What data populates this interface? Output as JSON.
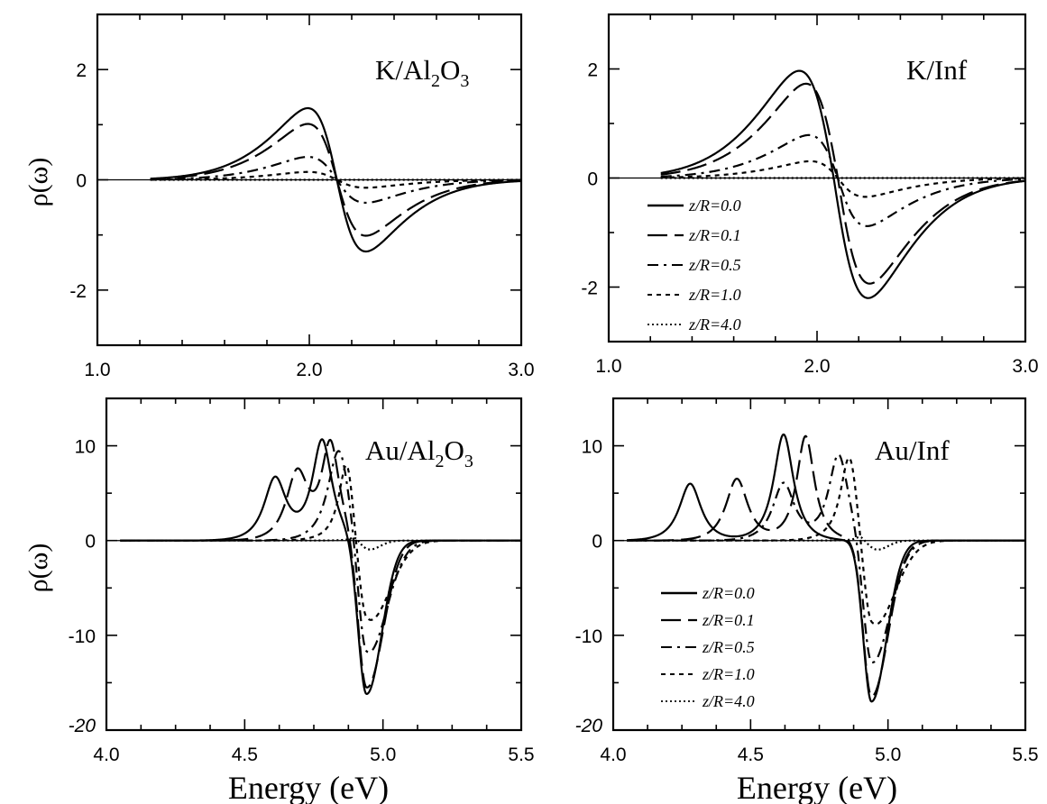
{
  "chart_data": [
    {
      "type": "line",
      "title": "K/Al2O3",
      "title_parts": [
        "K/Al",
        "2",
        "O",
        "3"
      ],
      "xlabel": "",
      "ylabel": "ρ(ω)",
      "xlim": [
        1.0,
        3.0
      ],
      "ylim": [
        -3,
        3
      ],
      "xticks": [
        "1.0",
        "2.0",
        "3.0"
      ],
      "yticks": [
        "2",
        "0",
        "-2"
      ],
      "grid": false,
      "model": {
        "center": 2.13,
        "width": 0.16,
        "amp": 1.42,
        "sigma": 0.13
      },
      "series": [
        {
          "z_over_R": 0.0,
          "scale": 1.0,
          "peak": [
            2.0,
            1.42
          ],
          "trough": [
            2.26,
            -1.42
          ]
        },
        {
          "z_over_R": 0.1,
          "scale": 0.78,
          "peak": [
            2.01,
            1.1
          ],
          "trough": [
            2.26,
            -1.1
          ]
        },
        {
          "z_over_R": 0.5,
          "scale": 0.32,
          "peak": [
            2.03,
            0.45
          ],
          "trough": [
            2.24,
            -0.45
          ]
        },
        {
          "z_over_R": 1.0,
          "scale": 0.11,
          "peak": [
            2.05,
            0.15
          ],
          "trough": [
            2.23,
            -0.15
          ]
        },
        {
          "z_over_R": 4.0,
          "scale": 0.0,
          "peak": [
            2.13,
            0.0
          ],
          "trough": [
            2.13,
            0.0
          ]
        }
      ]
    },
    {
      "type": "line",
      "title": "K/Inf",
      "title_parts": [
        "K/Inf"
      ],
      "xlabel": "",
      "ylabel": "",
      "xlim": [
        1.0,
        3.0
      ],
      "ylim": [
        -3,
        3
      ],
      "xticks": [
        "1.0",
        "2.0",
        "3.0"
      ],
      "yticks": [
        "2",
        "0",
        "-2"
      ],
      "grid": false,
      "legend": {
        "placement": "lower-left",
        "entries": [
          "z/R=0.0",
          "z/R=0.1",
          "z/R=0.5",
          "z/R=1.0",
          "z/R=4.0"
        ]
      },
      "series": [
        {
          "z_over_R": 0.0,
          "center": 2.08,
          "width": 0.2,
          "amp": 2.2,
          "sigma": 0.18,
          "peak": [
            1.92,
            2.2
          ],
          "trough": [
            2.25,
            -2.45
          ]
        },
        {
          "z_over_R": 0.1,
          "center": 2.1,
          "width": 0.18,
          "amp": 1.9,
          "sigma": 0.16,
          "peak": [
            1.95,
            1.9
          ],
          "trough": [
            2.25,
            -2.05
          ]
        },
        {
          "z_over_R": 0.5,
          "center": 2.1,
          "width": 0.16,
          "amp": 0.85,
          "sigma": 0.14,
          "peak": [
            1.97,
            0.85
          ],
          "trough": [
            2.25,
            -0.9
          ]
        },
        {
          "z_over_R": 1.0,
          "center": 2.1,
          "width": 0.15,
          "amp": 0.33,
          "sigma": 0.13,
          "peak": [
            1.99,
            0.33
          ],
          "trough": [
            2.22,
            -0.36
          ]
        },
        {
          "z_over_R": 4.0,
          "center": 2.1,
          "width": 0.15,
          "amp": 0.0,
          "sigma": 0.13,
          "peak": [
            2.1,
            0.0
          ],
          "trough": [
            2.1,
            0.0
          ]
        }
      ]
    },
    {
      "type": "line",
      "title": "Au/Al2O3",
      "title_parts": [
        "Au/Al",
        "2",
        "O",
        "3"
      ],
      "xlabel": "Energy (eV)",
      "ylabel": "ρ(ω)",
      "xlim": [
        4.0,
        5.5
      ],
      "ylim": [
        -20,
        15
      ],
      "xticks": [
        "4.0",
        "4.5",
        "5.0",
        "5.5"
      ],
      "yticks": [
        "10",
        "0",
        "-10",
        "-20"
      ],
      "grid": false,
      "series": [
        {
          "z_over_R": 0.0,
          "peaks": [
            [
              4.61,
              6.5,
              0.05
            ],
            [
              4.78,
              10.5,
              0.045
            ]
          ],
          "dip": [
            4.94,
            -16.5,
            0.03,
            0.055
          ],
          "peak": [
            4.78,
            10.5
          ],
          "trough": [
            4.94,
            -16.5
          ]
        },
        {
          "z_over_R": 0.1,
          "peaks": [
            [
              4.69,
              7.0,
              0.05
            ],
            [
              4.81,
              10.0,
              0.04
            ]
          ],
          "dip": [
            4.94,
            -16.0,
            0.03,
            0.06
          ],
          "peak": [
            4.81,
            10.0
          ],
          "trough": [
            4.94,
            -16.0
          ]
        },
        {
          "z_over_R": 0.5,
          "peaks": [
            [
              4.84,
              9.5,
              0.05
            ]
          ],
          "dip": [
            4.94,
            -13.0,
            0.03,
            0.07
          ],
          "peak": [
            4.84,
            9.5
          ],
          "trough": [
            4.94,
            -13.0
          ]
        },
        {
          "z_over_R": 1.0,
          "peaks": [
            [
              4.87,
              8.5,
              0.035
            ]
          ],
          "dip": [
            4.94,
            -9.5,
            0.03,
            0.08
          ],
          "peak": [
            4.87,
            8.5
          ],
          "trough": [
            4.94,
            -9.5
          ]
        },
        {
          "z_over_R": 4.0,
          "peaks": [
            [
              4.9,
              0.5,
              0.02
            ]
          ],
          "dip": [
            4.95,
            -1.0,
            0.03,
            0.04
          ],
          "peak": [
            4.9,
            0.5
          ],
          "trough": [
            4.95,
            -1.0
          ]
        }
      ]
    },
    {
      "type": "line",
      "title": "Au/Inf",
      "title_parts": [
        "Au/Inf"
      ],
      "xlabel": "Energy (eV)",
      "ylabel": "",
      "xlim": [
        4.0,
        5.5
      ],
      "ylim": [
        -20,
        15
      ],
      "xticks": [
        "4.0",
        "4.5",
        "5.0",
        "5.5"
      ],
      "yticks": [
        "10",
        "0",
        "-10",
        "-20"
      ],
      "grid": false,
      "legend": {
        "placement": "lower-left",
        "entries": [
          "z/R=0.0",
          "z/R=0.1",
          "z/R=0.5",
          "z/R=1.0",
          "z/R=4.0"
        ]
      },
      "series": [
        {
          "z_over_R": 0.0,
          "peaks": [
            [
              4.28,
              6.0,
              0.05
            ],
            [
              4.62,
              11.2,
              0.045
            ]
          ],
          "dip": [
            4.94,
            -17.0,
            0.03,
            0.055
          ],
          "peak": [
            4.62,
            11.2
          ],
          "trough": [
            4.94,
            -17.0
          ]
        },
        {
          "z_over_R": 0.1,
          "peaks": [
            [
              4.45,
              6.5,
              0.05
            ],
            [
              4.7,
              11.0,
              0.04
            ]
          ],
          "dip": [
            4.94,
            -16.5,
            0.03,
            0.06
          ],
          "peak": [
            4.7,
            11.0
          ],
          "trough": [
            4.94,
            -16.5
          ]
        },
        {
          "z_over_R": 0.5,
          "peaks": [
            [
              4.62,
              6.0,
              0.05
            ],
            [
              4.82,
              9.0,
              0.045
            ]
          ],
          "dip": [
            4.94,
            -13.5,
            0.03,
            0.065
          ],
          "peak": [
            4.82,
            9.0
          ],
          "trough": [
            4.94,
            -13.5
          ]
        },
        {
          "z_over_R": 1.0,
          "peaks": [
            [
              4.86,
              9.0,
              0.04
            ]
          ],
          "dip": [
            4.94,
            -10.0,
            0.03,
            0.08
          ],
          "peak": [
            4.86,
            9.0
          ],
          "trough": [
            4.94,
            -10.0
          ]
        },
        {
          "z_over_R": 4.0,
          "peaks": [
            [
              4.9,
              0.5,
              0.02
            ]
          ],
          "dip": [
            4.96,
            -1.0,
            0.03,
            0.04
          ],
          "peak": [
            4.9,
            0.5
          ],
          "trough": [
            4.96,
            -1.0
          ]
        }
      ]
    }
  ]
}
